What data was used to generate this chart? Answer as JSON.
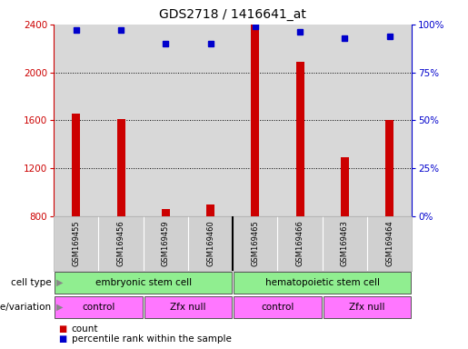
{
  "title": "GDS2718 / 1416641_at",
  "samples": [
    "GSM169455",
    "GSM169456",
    "GSM169459",
    "GSM169460",
    "GSM169465",
    "GSM169466",
    "GSM169463",
    "GSM169464"
  ],
  "counts": [
    1660,
    1610,
    860,
    900,
    2400,
    2090,
    1290,
    1600
  ],
  "percentile_ranks": [
    97,
    97,
    90,
    90,
    99,
    96,
    93,
    94
  ],
  "ylim_left": [
    800,
    2400
  ],
  "ylim_right": [
    0,
    100
  ],
  "yticks_left": [
    800,
    1200,
    1600,
    2000,
    2400
  ],
  "yticks_right": [
    0,
    25,
    50,
    75,
    100
  ],
  "bar_color": "#cc0000",
  "dot_color": "#0000cc",
  "grid_color": "#000000",
  "axis_color_left": "#cc0000",
  "axis_color_right": "#0000cc",
  "cell_type_labels": [
    "embryonic stem cell",
    "hematopoietic stem cell"
  ],
  "cell_type_ranges": [
    [
      0.5,
      4.5
    ],
    [
      4.5,
      8.5
    ]
  ],
  "cell_type_color": "#90EE90",
  "genotype_labels": [
    "control",
    "Zfx null",
    "control",
    "Zfx null"
  ],
  "genotype_ranges": [
    [
      0.5,
      2.5
    ],
    [
      2.5,
      4.5
    ],
    [
      4.5,
      6.5
    ],
    [
      6.5,
      8.5
    ]
  ],
  "genotype_color": "#FF77FF",
  "legend_count_color": "#cc0000",
  "legend_pct_color": "#0000cc",
  "bar_width": 0.18,
  "background_color": "#ffffff",
  "plot_bg_color": "#d8d8d8",
  "label_bg_color": "#d0d0d0",
  "fig_width": 5.15,
  "fig_height": 3.84,
  "dpi": 100
}
